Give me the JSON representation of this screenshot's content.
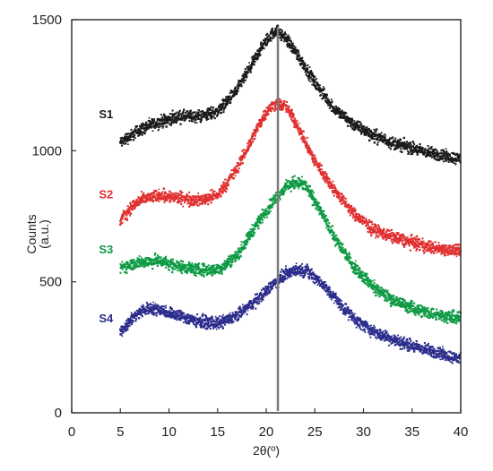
{
  "chart_data": {
    "type": "scatter",
    "title": "",
    "xlabel": "2θ(º)",
    "ylabel_line1": "Counts",
    "ylabel_line2": "(a.u.)",
    "xlim": [
      0,
      40
    ],
    "ylim": [
      0,
      1500
    ],
    "x_ticks": [
      0,
      5,
      10,
      15,
      20,
      25,
      30,
      35,
      40
    ],
    "y_ticks": [
      0,
      500,
      1000,
      1500
    ],
    "grid": false,
    "legend": "inline labels",
    "reference_line_x": 21.2,
    "series": [
      {
        "name": "S1",
        "color": "#1a1a1a",
        "x": [
          5,
          7,
          9,
          11,
          13,
          15,
          17,
          19,
          20,
          21,
          22,
          23,
          25,
          27,
          29,
          31,
          33,
          35,
          37,
          39,
          40
        ],
        "y": [
          1030,
          1080,
          1110,
          1130,
          1130,
          1150,
          1230,
          1360,
          1420,
          1460,
          1430,
          1380,
          1260,
          1160,
          1100,
          1060,
          1030,
          1010,
          990,
          975,
          970
        ]
      },
      {
        "name": "S2",
        "color": "#e03030",
        "x": [
          5,
          6,
          7,
          9,
          11,
          13,
          15,
          17,
          19,
          20,
          21,
          22,
          23,
          25,
          27,
          29,
          31,
          33,
          35,
          37,
          39,
          40
        ],
        "y": [
          730,
          780,
          810,
          830,
          820,
          810,
          830,
          930,
          1080,
          1150,
          1180,
          1170,
          1110,
          960,
          850,
          760,
          700,
          670,
          650,
          630,
          620,
          615
        ]
      },
      {
        "name": "S3",
        "color": "#0f9a45",
        "x": [
          5,
          7,
          9,
          11,
          13,
          15,
          17,
          19,
          21,
          22,
          23,
          24,
          25,
          27,
          29,
          31,
          33,
          35,
          37,
          39,
          40
        ],
        "y": [
          555,
          575,
          580,
          560,
          545,
          545,
          600,
          720,
          820,
          860,
          880,
          870,
          810,
          670,
          560,
          480,
          430,
          400,
          380,
          365,
          360
        ]
      },
      {
        "name": "S4",
        "color": "#2b2c8c",
        "x": [
          5,
          6,
          7,
          8,
          9,
          11,
          13,
          15,
          17,
          19,
          21,
          22,
          23,
          24,
          25,
          27,
          29,
          31,
          33,
          35,
          37,
          39,
          40
        ],
        "y": [
          310,
          350,
          385,
          400,
          395,
          370,
          350,
          340,
          370,
          430,
          500,
          530,
          545,
          545,
          520,
          440,
          360,
          310,
          280,
          255,
          235,
          215,
          205
        ]
      }
    ]
  },
  "series_label_positions": {
    "S1": [
      2.8,
      1125
    ],
    "S2": [
      2.8,
      818
    ],
    "S3": [
      2.8,
      608
    ],
    "S4": [
      2.8,
      345
    ]
  },
  "colors": {
    "axis": "#333333",
    "reference_line": "#7a7a7a"
  }
}
